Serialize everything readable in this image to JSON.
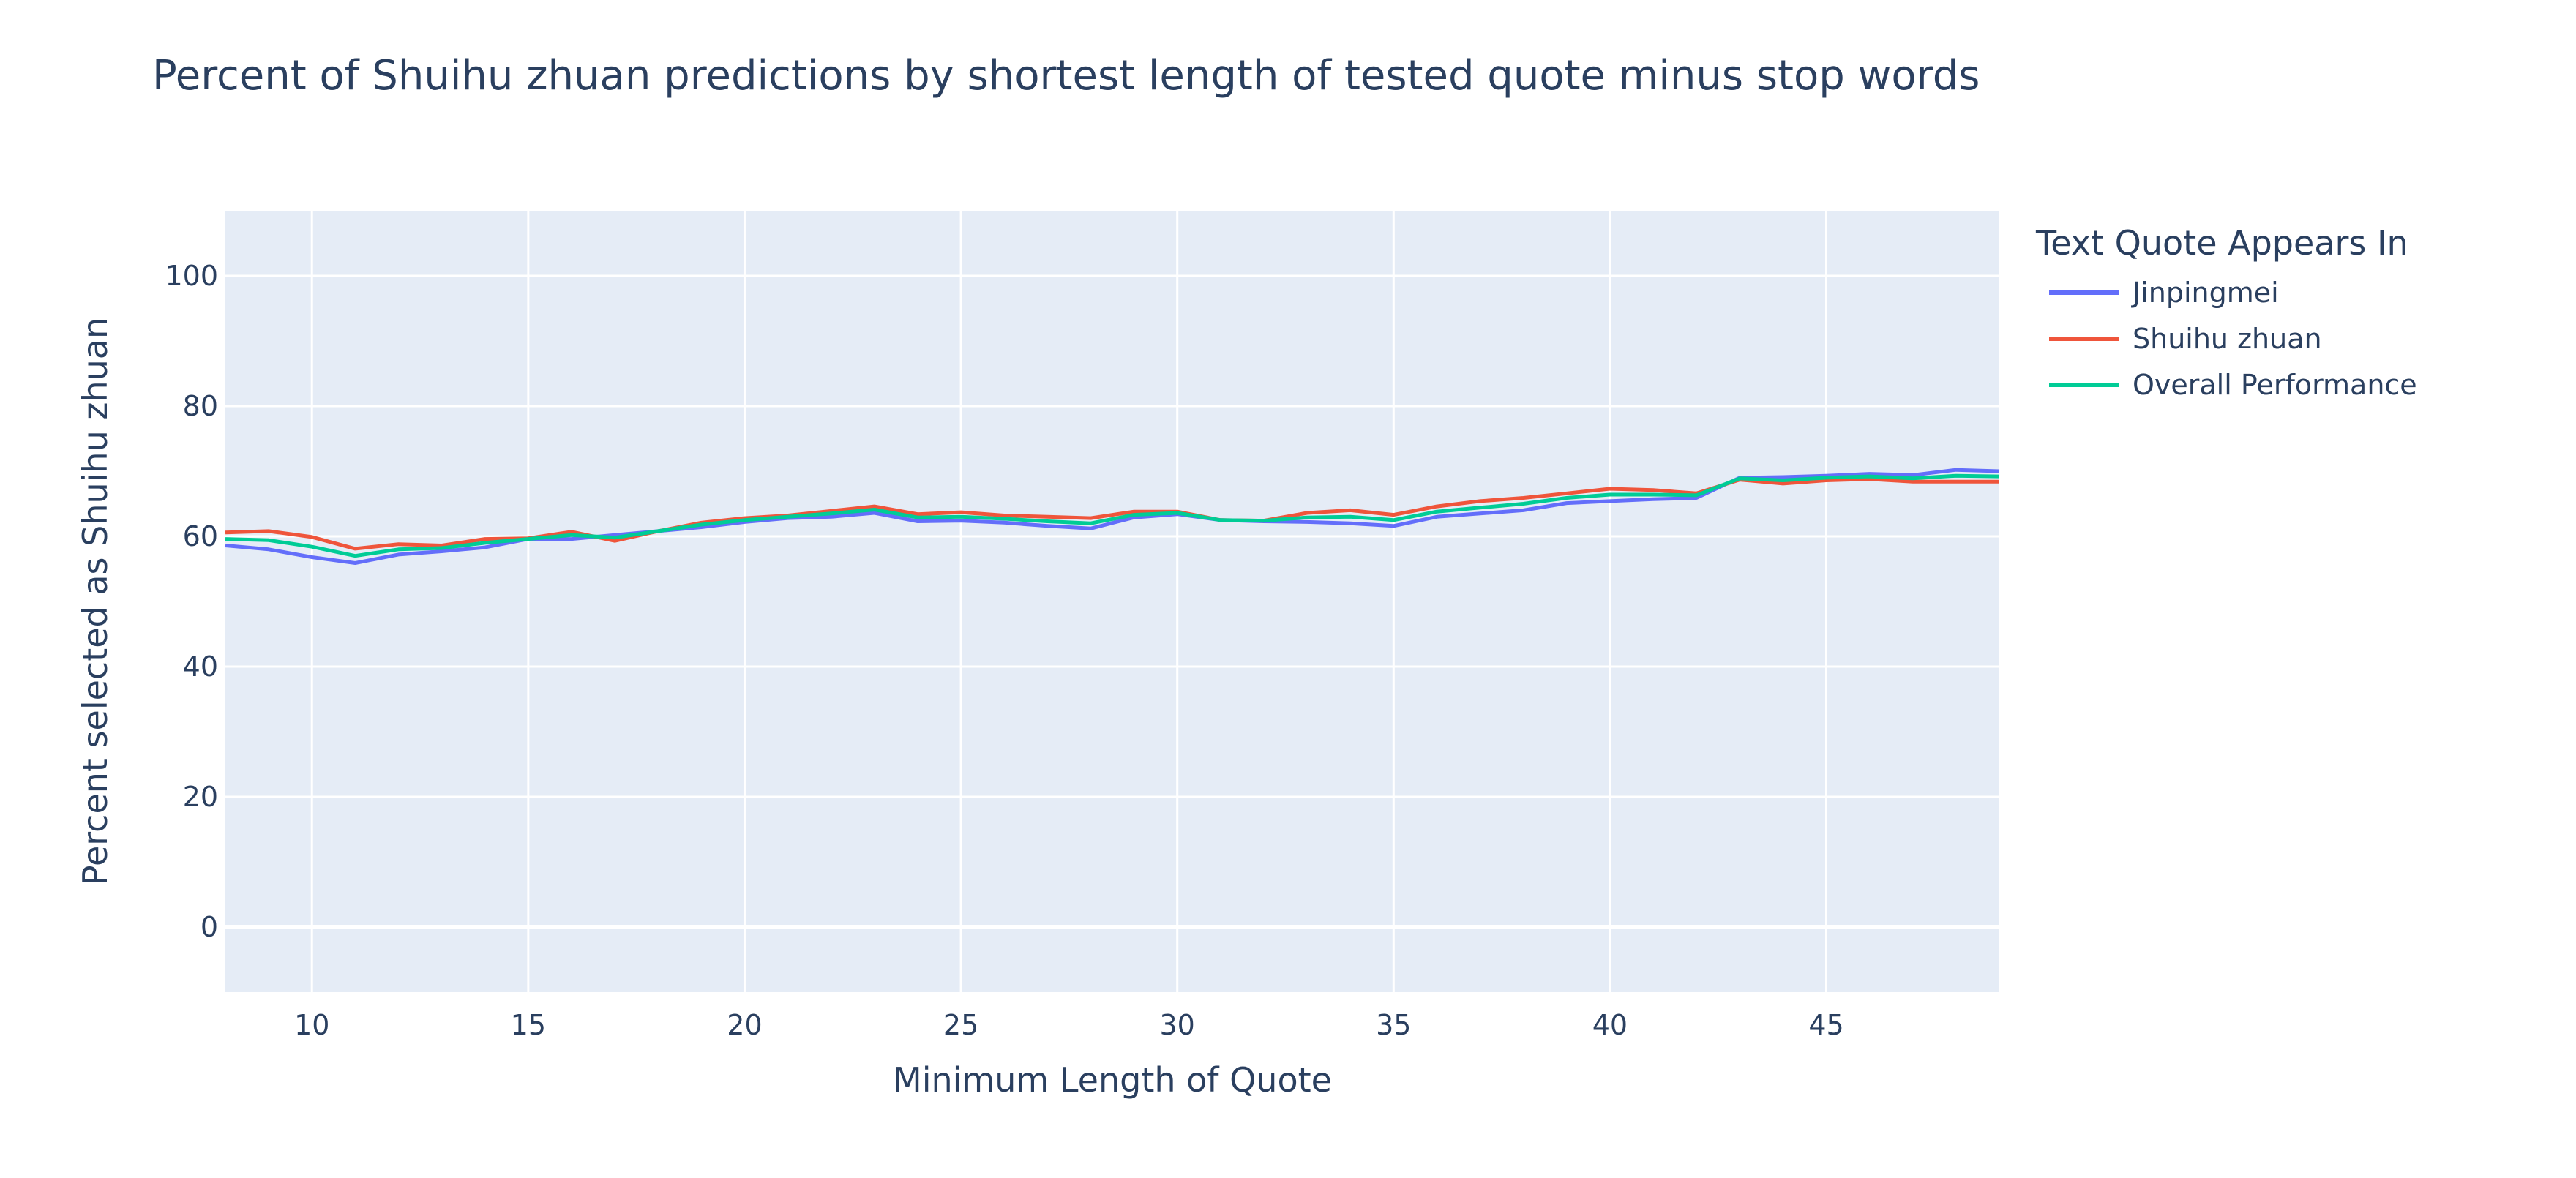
{
  "chart_data": {
    "type": "line",
    "title": "Percent of Shuihu zhuan predictions by shortest length of tested quote minus stop words",
    "xlabel": "Minimum Length of Quote",
    "ylabel": "Percent selected as Shuihu zhuan",
    "xlim": [
      8,
      49
    ],
    "ylim": [
      -10,
      110
    ],
    "xticks": [
      10,
      15,
      20,
      25,
      30,
      35,
      40,
      45
    ],
    "yticks": [
      0,
      20,
      40,
      60,
      80,
      100
    ],
    "grid": true,
    "legend": {
      "title": "Text Quote Appears In",
      "placement": "right-top"
    },
    "x": [
      8,
      9,
      10,
      11,
      12,
      13,
      14,
      15,
      16,
      17,
      18,
      19,
      20,
      21,
      22,
      23,
      24,
      25,
      26,
      27,
      28,
      29,
      30,
      31,
      32,
      33,
      34,
      35,
      36,
      37,
      38,
      39,
      40,
      41,
      42,
      43,
      44,
      45,
      46,
      47,
      48,
      49
    ],
    "series": [
      {
        "name": "Jinpingmei",
        "color": "#636efa",
        "values": [
          58.6,
          58.0,
          56.8,
          55.9,
          57.2,
          57.7,
          58.3,
          59.6,
          59.6,
          60.2,
          60.8,
          61.4,
          62.2,
          62.8,
          63.0,
          63.6,
          62.3,
          62.4,
          62.1,
          61.6,
          61.2,
          62.9,
          63.4,
          62.5,
          62.3,
          62.2,
          62.0,
          61.6,
          63.0,
          63.5,
          64.0,
          65.1,
          65.4,
          65.7,
          65.9,
          69.0,
          69.1,
          69.3,
          69.6,
          69.4,
          70.2,
          70.0
        ]
      },
      {
        "name": "Shuihu zhuan",
        "color": "#ef553b",
        "values": [
          60.6,
          60.8,
          59.9,
          58.1,
          58.8,
          58.6,
          59.6,
          59.7,
          60.7,
          59.3,
          60.8,
          62.1,
          62.8,
          63.2,
          63.9,
          64.6,
          63.4,
          63.7,
          63.2,
          63.0,
          62.8,
          63.8,
          63.8,
          62.5,
          62.4,
          63.6,
          64.0,
          63.3,
          64.6,
          65.4,
          65.9,
          66.6,
          67.3,
          67.1,
          66.6,
          68.7,
          68.1,
          68.6,
          68.8,
          68.4,
          68.4,
          68.4
        ]
      },
      {
        "name": "Overall Performance",
        "color": "#00cc96",
        "values": [
          59.6,
          59.4,
          58.4,
          57.0,
          58.0,
          58.2,
          59.0,
          59.6,
          60.2,
          59.8,
          60.8,
          61.8,
          62.5,
          63.0,
          63.5,
          64.1,
          62.9,
          63.0,
          62.7,
          62.3,
          62.0,
          63.3,
          63.6,
          62.5,
          62.4,
          62.9,
          63.0,
          62.5,
          63.8,
          64.4,
          65.0,
          65.9,
          66.4,
          66.4,
          66.3,
          68.9,
          68.6,
          69.0,
          69.2,
          68.9,
          69.3,
          69.2
        ]
      }
    ]
  }
}
